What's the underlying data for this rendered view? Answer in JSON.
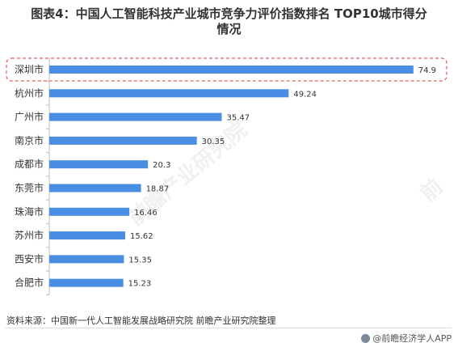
{
  "title": {
    "line1": "图表4：中国人工智能科技产业城市竞争力评价指数排名 TOP10城市得分",
    "line2": "情况"
  },
  "chart_data": {
    "type": "bar",
    "orientation": "horizontal",
    "categories": [
      "深圳市",
      "杭州市",
      "广州市",
      "南京市",
      "成都市",
      "东莞市",
      "珠海市",
      "苏州市",
      "西安市",
      "合肥市"
    ],
    "values": [
      74.9,
      49.24,
      35.47,
      30.35,
      20.3,
      18.87,
      16.46,
      15.62,
      15.35,
      15.23
    ],
    "value_labels": [
      "74.9",
      "49.24",
      "35.47",
      "30.35",
      "20.3",
      "18.87",
      "16.46",
      "15.62",
      "15.35",
      "15.23"
    ],
    "xlim": [
      0,
      75.6
    ],
    "highlight_category": "深圳市",
    "bar_color": "#4a8ee3",
    "highlight_color": "#e03a3a",
    "grid": false,
    "legend": "none"
  },
  "source": "资料来源：中国新一代人工智能发展战略研究院 前瞻产业研究院整理",
  "brand": "@前瞻经济学人APP",
  "watermark": {
    "center": "前瞻产业研究院",
    "right": "前"
  }
}
